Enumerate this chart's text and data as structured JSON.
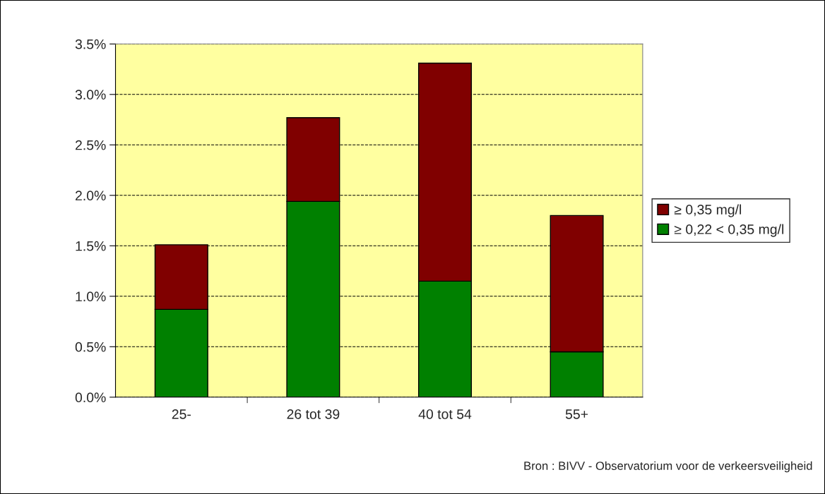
{
  "chart_data": {
    "type": "bar",
    "stacked": true,
    "categories": [
      "25-",
      "26 tot 39",
      "40 tot 54",
      "55+"
    ],
    "series": [
      {
        "name": "≥ 0,22 < 0,35 mg/l",
        "color": "#008000",
        "values": [
          0.87,
          1.94,
          1.15,
          0.45
        ]
      },
      {
        "name": "≥ 0,35 mg/l",
        "color": "#800000",
        "values": [
          0.64,
          0.83,
          2.16,
          1.35
        ]
      }
    ],
    "ylim": [
      0,
      3.5
    ],
    "yticks": [
      {
        "value": 0,
        "label": "0.0%"
      },
      {
        "value": 0.5,
        "label": "0.5%"
      },
      {
        "value": 1,
        "label": "1.0%"
      },
      {
        "value": 1.5,
        "label": "1.5%"
      },
      {
        "value": 2,
        "label": "2.0%"
      },
      {
        "value": 2.5,
        "label": "2.5%"
      },
      {
        "value": 3,
        "label": "3.0%"
      },
      {
        "value": 3.5,
        "label": "3.5%"
      }
    ],
    "grid": "y",
    "legend": "right",
    "annotations": [
      "Bron : BIVV - Observatorium voor de verkeersveiligheid"
    ]
  }
}
